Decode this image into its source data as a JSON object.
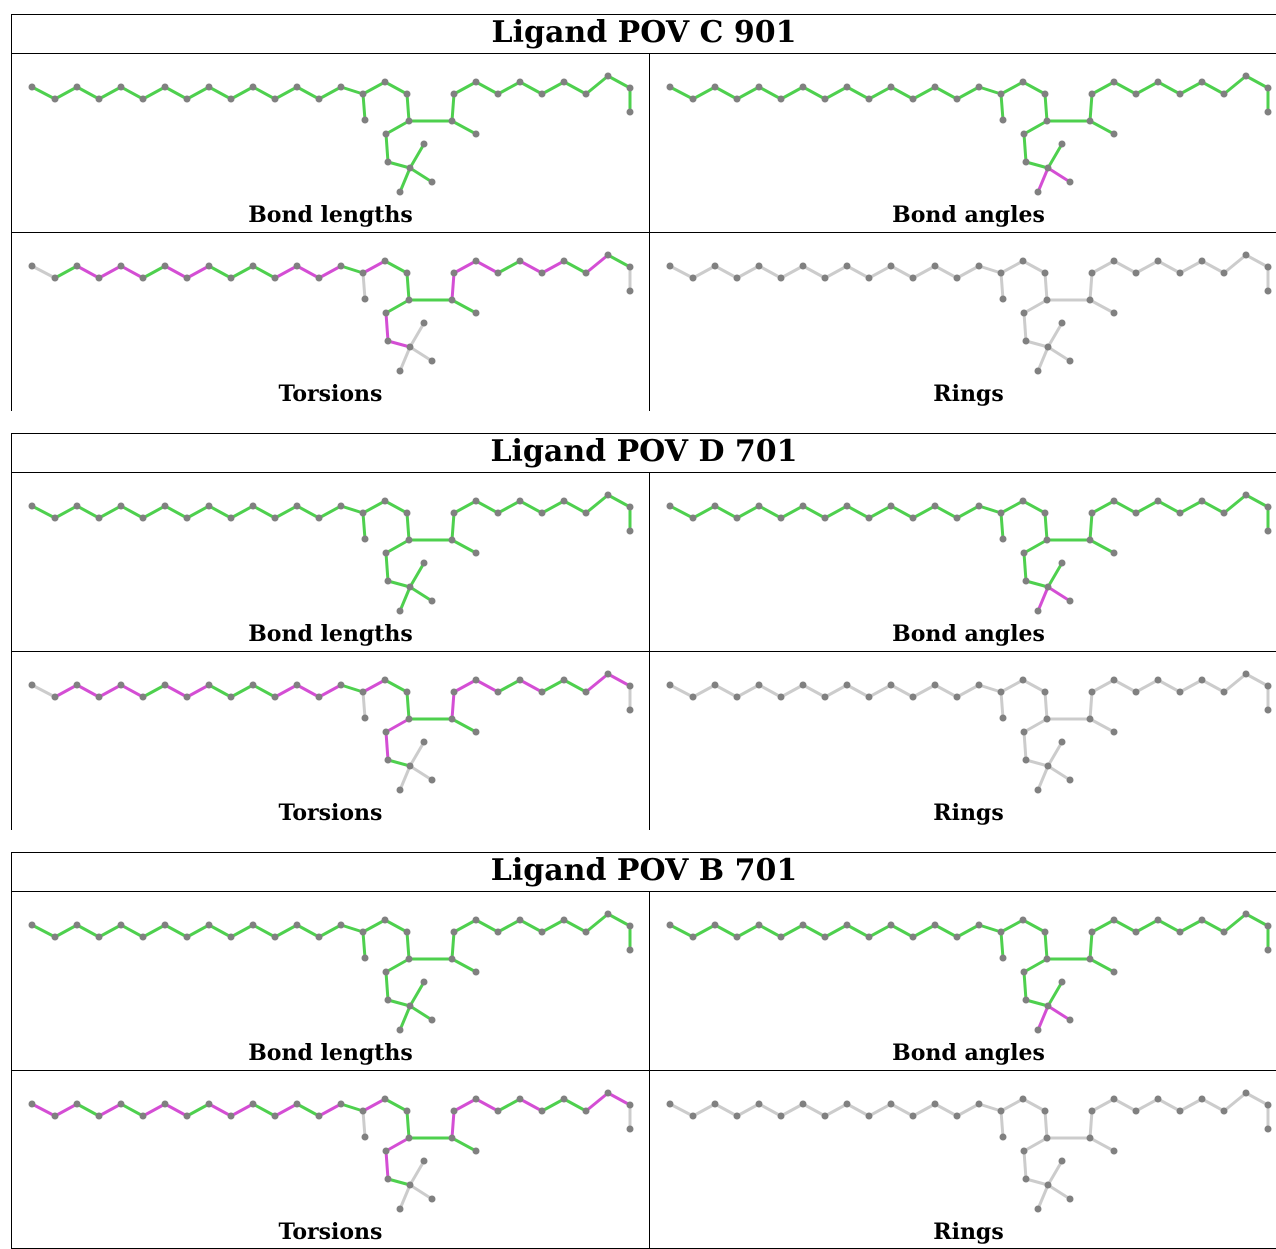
{
  "colors": {
    "green": "#4ed04e",
    "magenta": "#d44ed4",
    "grey": "#cccccc",
    "atom": "#808080"
  },
  "blocks": [
    {
      "title": "Ligand POV C 901",
      "panels": [
        {
          "caption": "Bond lengths",
          "highlight": []
        },
        {
          "caption": "Bond angles",
          "highlight": [
            [
              31,
              33
            ],
            [
              31,
              34
            ]
          ]
        },
        {
          "caption": "Torsions",
          "highlight": [
            [
              2,
              3
            ],
            [
              3,
              4
            ],
            [
              4,
              5
            ],
            [
              6,
              7
            ],
            [
              7,
              8
            ],
            [
              11,
              12
            ],
            [
              12,
              13
            ],
            [
              13,
              14
            ],
            [
              15,
              16
            ],
            [
              19,
              20
            ],
            [
              20,
              21
            ],
            [
              22,
              23
            ],
            [
              23,
              24
            ],
            [
              24,
              25
            ],
            [
              26,
              27
            ],
            [
              27,
              28
            ],
            [
              29,
              30
            ]
          ]
        },
        {
          "caption": "Rings",
          "highlight": []
        }
      ]
    },
    {
      "title": "Ligand POV D 701",
      "panels": [
        {
          "caption": "Bond lengths",
          "highlight": []
        },
        {
          "caption": "Bond angles",
          "highlight": [
            [
              31,
              33
            ],
            [
              31,
              34
            ]
          ]
        },
        {
          "caption": "Torsions",
          "highlight": [
            [
              1,
              2
            ],
            [
              2,
              3
            ],
            [
              3,
              4
            ],
            [
              4,
              5
            ],
            [
              6,
              7
            ],
            [
              7,
              8
            ],
            [
              11,
              12
            ],
            [
              12,
              13
            ],
            [
              13,
              14
            ],
            [
              15,
              16
            ],
            [
              18,
              19
            ],
            [
              19,
              20
            ],
            [
              22,
              23
            ],
            [
              23,
              24
            ],
            [
              24,
              25
            ],
            [
              26,
              27
            ],
            [
              29,
              30
            ],
            [
              30,
              31
            ]
          ]
        },
        {
          "caption": "Rings",
          "highlight": []
        }
      ]
    },
    {
      "title": "Ligand POV B 701",
      "panels": [
        {
          "caption": "Bond lengths",
          "highlight": []
        },
        {
          "caption": "Bond angles",
          "highlight": [
            [
              31,
              33
            ],
            [
              31,
              34
            ]
          ]
        },
        {
          "caption": "Torsions",
          "highlight": [
            [
              0,
              1
            ],
            [
              1,
              2
            ],
            [
              3,
              4
            ],
            [
              5,
              6
            ],
            [
              6,
              7
            ],
            [
              8,
              9
            ],
            [
              9,
              10
            ],
            [
              11,
              12
            ],
            [
              13,
              14
            ],
            [
              15,
              16
            ],
            [
              18,
              19
            ],
            [
              19,
              20
            ],
            [
              22,
              23
            ],
            [
              23,
              24
            ],
            [
              24,
              25
            ],
            [
              26,
              27
            ],
            [
              29,
              30
            ],
            [
              30,
              31
            ]
          ]
        },
        {
          "caption": "Rings",
          "highlight": []
        }
      ]
    }
  ]
}
